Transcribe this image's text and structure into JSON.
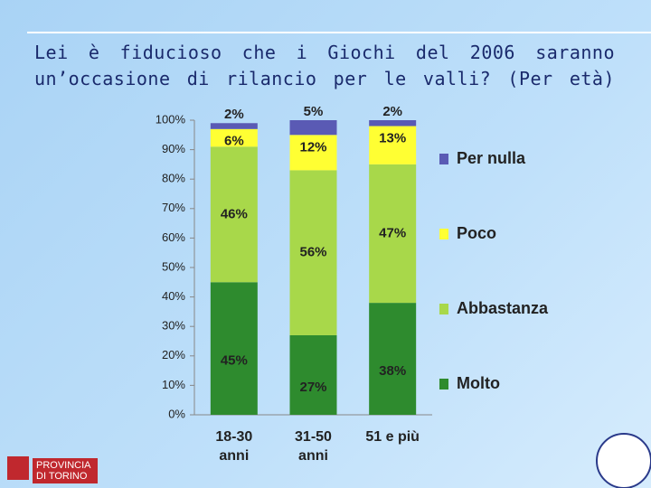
{
  "chart_data": {
    "type": "stacked_bar",
    "title": "Lei è fiducioso che i Giochi del 2006 saranno un’occasione di rilancio per le valli? (Per età)",
    "categories": [
      "18-30\nanni",
      "31-50\nanni",
      "51 e più"
    ],
    "series": [
      {
        "name": "Molto",
        "color": "#2e8b2e",
        "values": [
          45,
          27,
          38
        ],
        "value_labels": [
          "45%",
          "27%",
          "38%"
        ]
      },
      {
        "name": "Abbastanza",
        "color": "#a8d84a",
        "values": [
          46,
          56,
          47
        ],
        "value_labels": [
          "46%",
          "56%",
          "47%"
        ]
      },
      {
        "name": "Poco",
        "color": "#ffff33",
        "values": [
          6,
          12,
          13
        ],
        "value_labels": [
          "6%",
          "12%",
          "13%"
        ]
      },
      {
        "name": "Per nulla",
        "color": "#5a5ab4",
        "values": [
          2,
          5,
          2
        ],
        "value_labels": [
          "2%",
          "5%",
          "2%"
        ]
      }
    ],
    "ylim": [
      0,
      100
    ],
    "yticks": [
      {
        "value": 0,
        "label": "0%"
      },
      {
        "value": 10,
        "label": "10%"
      },
      {
        "value": 20,
        "label": "20%"
      },
      {
        "value": 30,
        "label": "30%"
      },
      {
        "value": 40,
        "label": "40%"
      },
      {
        "value": 50,
        "label": "50%"
      },
      {
        "value": 60,
        "label": "60%"
      },
      {
        "value": 70,
        "label": "70%"
      },
      {
        "value": 80,
        "label": "80%"
      },
      {
        "value": 90,
        "label": "90%"
      },
      {
        "value": 100,
        "label": "100%"
      }
    ],
    "legend": "right"
  },
  "logo": "PROVINCIA DI TORINO"
}
